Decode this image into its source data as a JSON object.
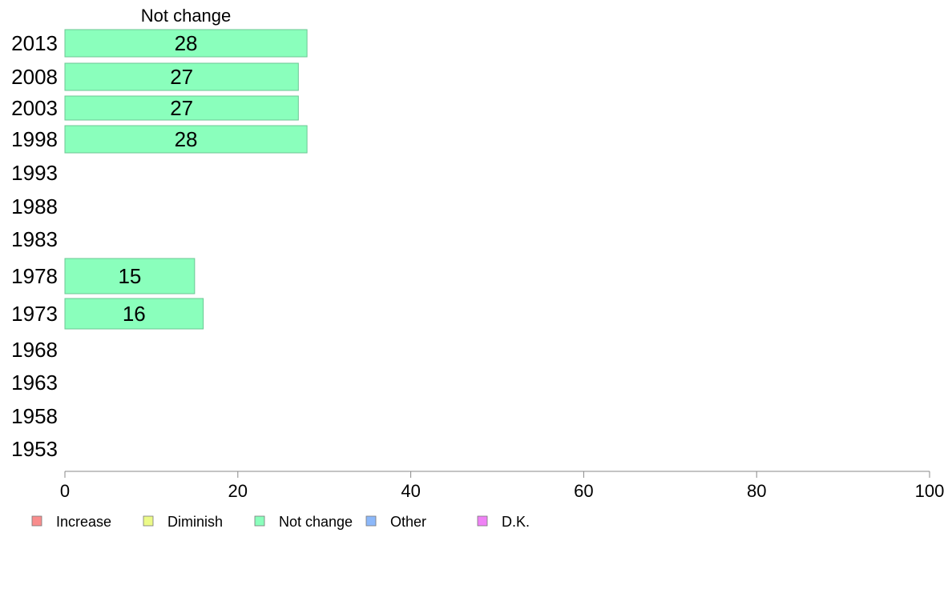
{
  "chart_data": {
    "type": "bar",
    "orientation": "horizontal",
    "panel_title": "Not change",
    "categories": [
      "2013",
      "2008",
      "2003",
      "1998",
      "1993",
      "1988",
      "1983",
      "1978",
      "1973",
      "1968",
      "1963",
      "1958",
      "1953"
    ],
    "series": [
      {
        "name": "Not change",
        "values": [
          28,
          27,
          27,
          28,
          null,
          null,
          null,
          15,
          16,
          null,
          null,
          null,
          null
        ]
      }
    ],
    "xlim": [
      0,
      100
    ],
    "x_ticks": [
      "0",
      "20",
      "40",
      "60",
      "80",
      "100"
    ],
    "legend_position": "bottom-left",
    "legend": [
      {
        "label": "Increase",
        "color": "#f98d8d"
      },
      {
        "label": "Diminish",
        "color": "#ecfa88"
      },
      {
        "label": "Not change",
        "color": "#8affbc"
      },
      {
        "label": "Other",
        "color": "#8cb8fa"
      },
      {
        "label": "D.K.",
        "color": "#ef82f5"
      }
    ],
    "bar_color": "#8affbc",
    "bar_stroke": "#6cc794",
    "axis_color": "#888888",
    "grid": false
  }
}
